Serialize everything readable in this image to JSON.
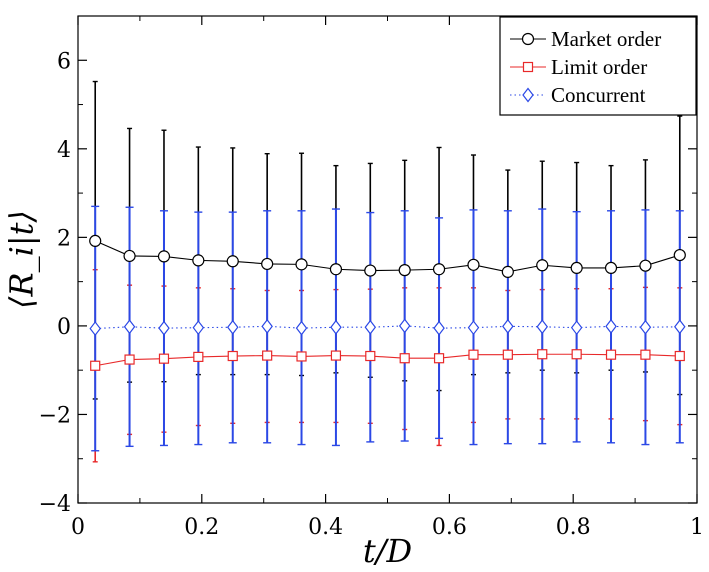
{
  "chart_data": {
    "type": "line",
    "xlabel": "t/D",
    "ylabel": "⟨R_i|t⟩",
    "xlim": [
      0,
      1
    ],
    "ylim": [
      -4,
      7
    ],
    "x_ticks": [
      0,
      0.2,
      0.4,
      0.6,
      0.8,
      1
    ],
    "x_tick_labels": [
      "0",
      "0.2",
      "0.4",
      "0.6",
      "0.8",
      "1"
    ],
    "y_ticks": [
      -4,
      -2,
      0,
      2,
      4,
      6
    ],
    "y_tick_labels": [
      "−4",
      "−2",
      "0",
      "2",
      "4",
      "6"
    ],
    "grid": false,
    "legend_position": "top-right",
    "x": [
      0.0278,
      0.0833,
      0.1389,
      0.1944,
      0.25,
      0.3056,
      0.3611,
      0.4167,
      0.4722,
      0.5278,
      0.5833,
      0.6389,
      0.6944,
      0.75,
      0.8056,
      0.8611,
      0.9167,
      0.9722
    ],
    "series": [
      {
        "name": "Market order",
        "color": "#000000",
        "marker": "circle",
        "line": "solid",
        "values": [
          1.92,
          1.58,
          1.57,
          1.48,
          1.46,
          1.4,
          1.39,
          1.28,
          1.25,
          1.26,
          1.28,
          1.38,
          1.22,
          1.37,
          1.31,
          1.31,
          1.36,
          1.6
        ],
        "upper": [
          5.52,
          4.46,
          4.42,
          4.04,
          4.02,
          3.89,
          3.9,
          3.62,
          3.67,
          3.74,
          4.03,
          3.86,
          3.52,
          3.72,
          3.69,
          3.62,
          3.75,
          4.74
        ],
        "lower": [
          -1.65,
          -1.27,
          -1.26,
          -1.1,
          -1.1,
          -1.1,
          -1.12,
          -1.06,
          -1.16,
          -1.24,
          -1.46,
          -1.1,
          -1.06,
          -1.0,
          -1.06,
          -1.0,
          -1.04,
          -1.55
        ]
      },
      {
        "name": "Limit order",
        "color": "#e8292a",
        "marker": "square",
        "line": "solid",
        "values": [
          -0.9,
          -0.76,
          -0.74,
          -0.7,
          -0.68,
          -0.67,
          -0.69,
          -0.67,
          -0.68,
          -0.73,
          -0.73,
          -0.65,
          -0.65,
          -0.64,
          -0.64,
          -0.65,
          -0.65,
          -0.68
        ],
        "upper": [
          1.27,
          0.92,
          0.9,
          0.86,
          0.84,
          0.8,
          0.8,
          0.82,
          0.83,
          0.86,
          0.86,
          0.86,
          0.8,
          0.82,
          0.84,
          0.84,
          0.87,
          0.86
        ],
        "lower": [
          -3.07,
          -2.45,
          -2.4,
          -2.25,
          -2.2,
          -2.18,
          -2.18,
          -2.18,
          -2.2,
          -2.34,
          -2.7,
          -2.18,
          -2.1,
          -2.1,
          -2.1,
          -2.1,
          -2.14,
          -2.23
        ]
      },
      {
        "name": "Concurrent",
        "color": "#2b48e6",
        "marker": "diamond",
        "line": "dotted",
        "values": [
          -0.06,
          -0.02,
          -0.05,
          -0.04,
          -0.03,
          -0.01,
          -0.05,
          -0.03,
          -0.03,
          0.0,
          -0.05,
          -0.04,
          -0.01,
          -0.02,
          -0.04,
          -0.01,
          -0.03,
          -0.02
        ],
        "upper": [
          2.7,
          2.68,
          2.6,
          2.57,
          2.57,
          2.6,
          2.6,
          2.64,
          2.56,
          2.6,
          2.44,
          2.62,
          2.6,
          2.64,
          2.58,
          2.6,
          2.62,
          2.6
        ],
        "lower": [
          -2.82,
          -2.72,
          -2.7,
          -2.68,
          -2.64,
          -2.64,
          -2.68,
          -2.7,
          -2.62,
          -2.6,
          -2.54,
          -2.68,
          -2.66,
          -2.66,
          -2.62,
          -2.64,
          -2.68,
          -2.64
        ]
      }
    ]
  }
}
